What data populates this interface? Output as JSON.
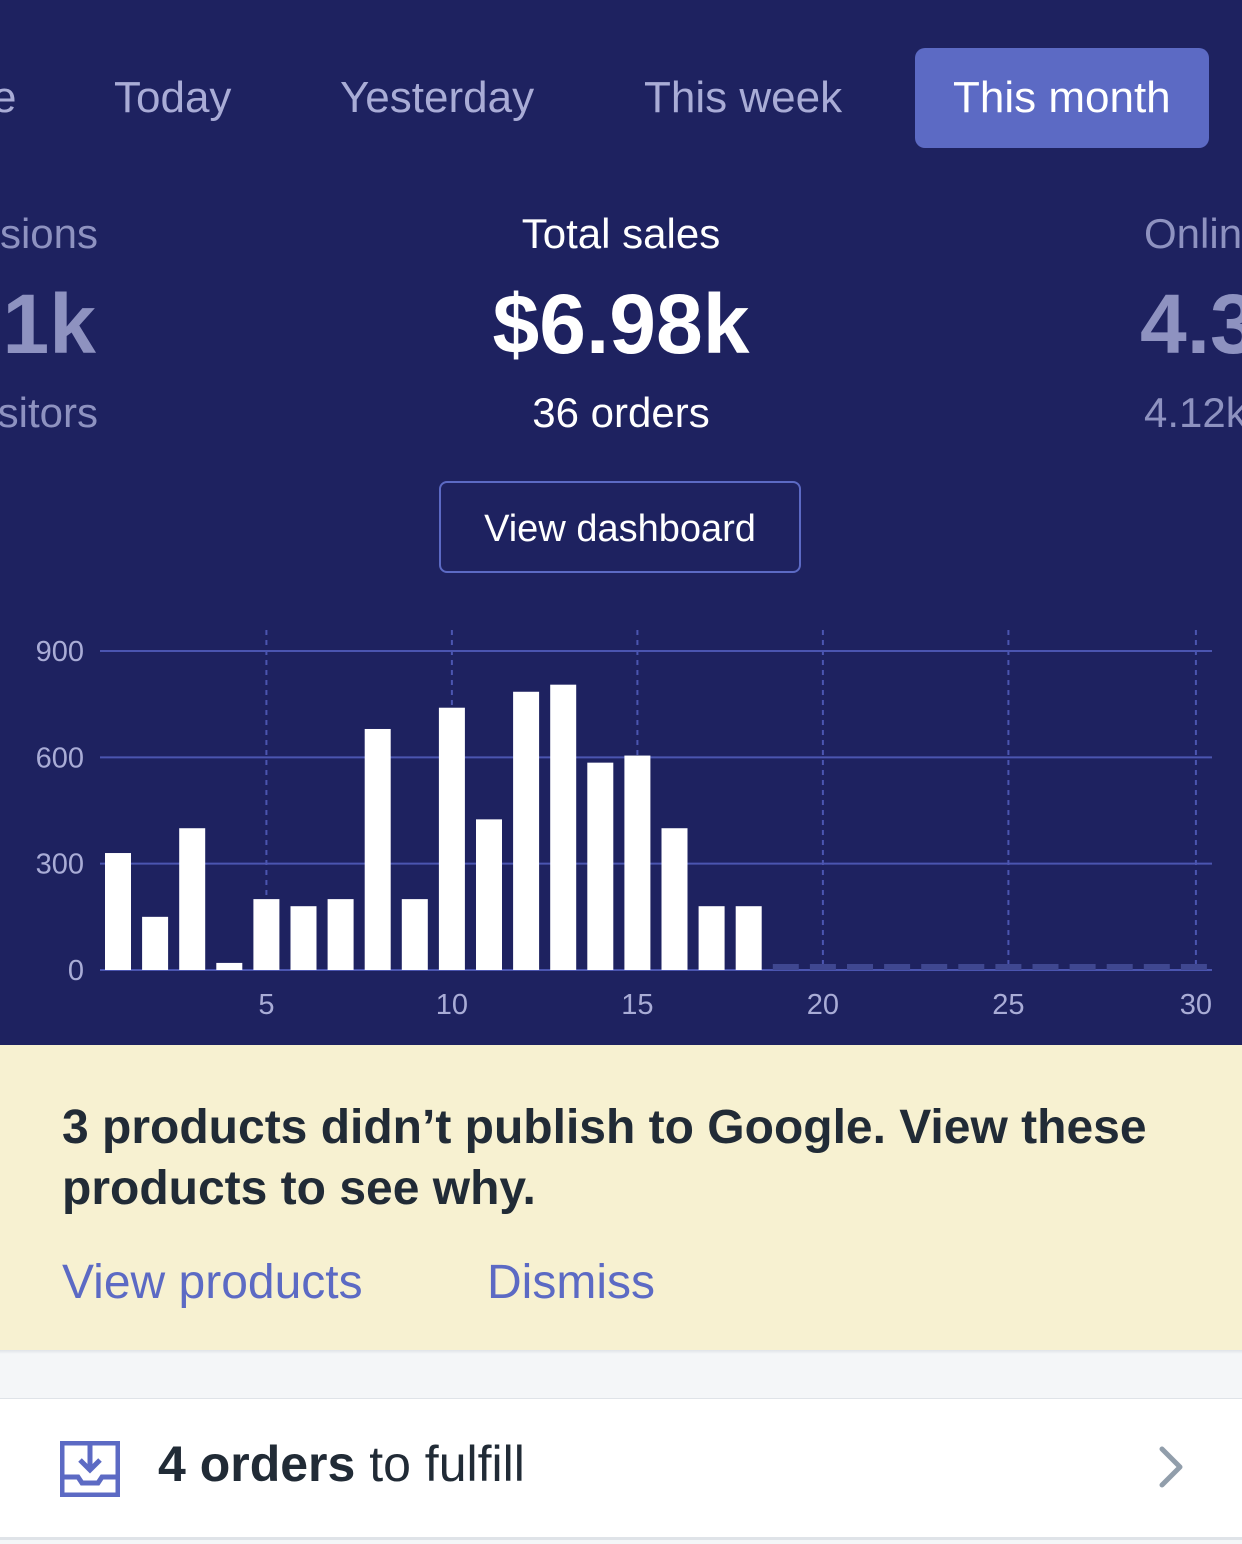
{
  "tabs": [
    {
      "label": "e"
    },
    {
      "label": "Today"
    },
    {
      "label": "Yesterday"
    },
    {
      "label": "This week"
    },
    {
      "label": "This month",
      "active": true
    }
  ],
  "stats": {
    "left": {
      "label": "sions",
      "value": ".1k",
      "sub": "sitors"
    },
    "center": {
      "label": "Total sales",
      "value": "$6.98k",
      "sub": "36 orders"
    },
    "right": {
      "label": "Onlin",
      "value": "4.3",
      "sub": "4.12k"
    }
  },
  "view_dashboard_label": "View dashboard",
  "chart_data": {
    "type": "bar",
    "x": [
      1,
      2,
      3,
      4,
      5,
      6,
      7,
      8,
      9,
      10,
      11,
      12,
      13,
      14,
      15,
      16,
      17,
      18,
      19,
      20,
      21,
      22,
      23,
      24,
      25,
      26,
      27,
      28,
      29,
      30
    ],
    "values": [
      330,
      150,
      400,
      20,
      200,
      180,
      200,
      680,
      200,
      740,
      425,
      785,
      805,
      585,
      605,
      400,
      180,
      180,
      0,
      0,
      0,
      0,
      0,
      0,
      0,
      0,
      0,
      0,
      0,
      0
    ],
    "y_ticks": [
      "0",
      "300",
      "600",
      "900"
    ],
    "x_ticks": [
      "5",
      "10",
      "15",
      "20",
      "25",
      "30"
    ],
    "ylim": [
      0,
      900
    ],
    "xlim": [
      1,
      30
    ],
    "grid": true,
    "colors": {
      "bar": "#ffffff",
      "zero_bar": "#3f4790",
      "grid": "#4b55b0",
      "tick_label": "#a9acd6"
    }
  },
  "banner": {
    "message": "3 products didn’t publish to Google. View these products to see why.",
    "view_products": "View products",
    "dismiss": "Dismiss"
  },
  "fulfill": {
    "count_text": "4 orders",
    "rest_text": " to fulfill"
  },
  "colors": {
    "header_bg": "#1e2260",
    "accent": "#5c6ac4",
    "banner_bg": "#f7f1d1"
  }
}
